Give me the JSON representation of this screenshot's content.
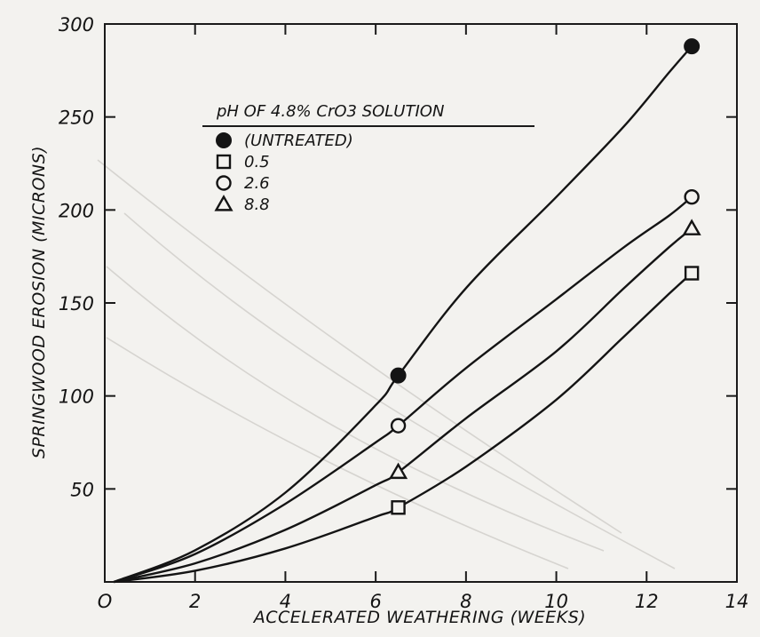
{
  "chart_data": {
    "type": "line",
    "xlabel": "ACCELERATED WEATHERING (WEEKS)",
    "ylabel": "SPRINGWOOD EROSION (MICRONS)",
    "xlim": [
      0,
      14
    ],
    "ylim": [
      0,
      300
    ],
    "x_ticks": [
      0,
      2,
      4,
      6,
      8,
      10,
      12,
      14
    ],
    "y_ticks": [
      0,
      50,
      100,
      150,
      200,
      250,
      300
    ],
    "x_tick_labels": [
      "O",
      "2",
      "4",
      "6",
      "8",
      "10",
      "12",
      "14"
    ],
    "y_tick_labels": [
      "",
      "50",
      "100",
      "150",
      "200",
      "250",
      "300"
    ],
    "grid": false,
    "legend_position": "top-left",
    "legend_title": "pH OF 4.8% CrO3 SOLUTION",
    "series": [
      {
        "name": "(UNTREATED)",
        "marker": "filled-circle",
        "points": [
          [
            6.5,
            111
          ],
          [
            13,
            288
          ]
        ],
        "curve": [
          [
            0.2,
            0
          ],
          [
            2,
            17
          ],
          [
            4,
            48
          ],
          [
            6,
            95
          ],
          [
            6.5,
            111
          ],
          [
            8,
            158
          ],
          [
            10,
            207
          ],
          [
            11.5,
            245
          ],
          [
            12.5,
            274
          ],
          [
            13,
            288
          ]
        ]
      },
      {
        "name": "0.5",
        "marker": "open-square",
        "points": [
          [
            6.5,
            40
          ],
          [
            13,
            166
          ]
        ],
        "curve": [
          [
            0.2,
            0
          ],
          [
            2,
            6
          ],
          [
            4,
            18
          ],
          [
            6,
            35
          ],
          [
            6.5,
            40
          ],
          [
            8,
            62
          ],
          [
            10,
            98
          ],
          [
            11.5,
            132
          ],
          [
            12.5,
            155
          ],
          [
            13,
            166
          ]
        ]
      },
      {
        "name": "2.6",
        "marker": "open-circle",
        "points": [
          [
            6.5,
            84
          ],
          [
            13,
            207
          ]
        ],
        "curve": [
          [
            0.2,
            0
          ],
          [
            2,
            15
          ],
          [
            4,
            42
          ],
          [
            6,
            75
          ],
          [
            6.5,
            84
          ],
          [
            8,
            115
          ],
          [
            10,
            152
          ],
          [
            11.5,
            180
          ],
          [
            12.5,
            197
          ],
          [
            13,
            207
          ]
        ]
      },
      {
        "name": "8.8",
        "marker": "open-triangle",
        "points": [
          [
            6.5,
            59
          ],
          [
            13,
            190
          ]
        ],
        "curve": [
          [
            0.2,
            0
          ],
          [
            2,
            10
          ],
          [
            4,
            28
          ],
          [
            6,
            52
          ],
          [
            6.5,
            59
          ],
          [
            8,
            88
          ],
          [
            10,
            124
          ],
          [
            11.5,
            158
          ],
          [
            12.5,
            180
          ],
          [
            13,
            190
          ]
        ]
      }
    ]
  }
}
